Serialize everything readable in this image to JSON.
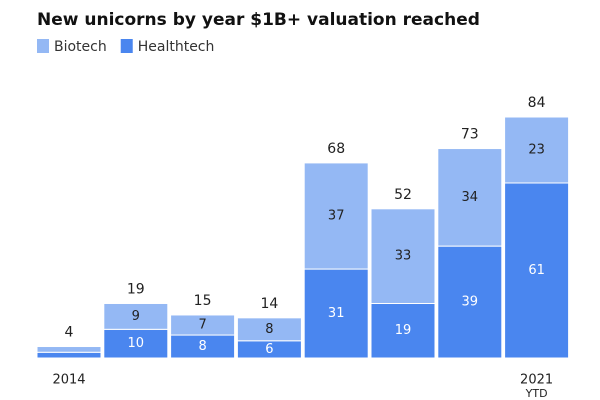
{
  "chart_data": {
    "type": "stacked_bar",
    "title": "New unicorns by year $1B+ valuation reached",
    "categories": [
      "2014",
      null,
      null,
      null,
      null,
      null,
      null,
      "2021"
    ],
    "x_note": "YTD",
    "series": [
      {
        "name": "Healthtech",
        "color": "#4a86ef",
        "values": [
          2,
          10,
          8,
          6,
          31,
          19,
          39,
          61
        ],
        "value_labels": [
          null,
          "10",
          "8",
          "6",
          "31",
          "19",
          "39",
          "61"
        ]
      },
      {
        "name": "Biotech",
        "color": "#94b8f4",
        "values": [
          2,
          9,
          7,
          8,
          37,
          33,
          34,
          23
        ],
        "value_labels": [
          null,
          "9",
          "7",
          "8",
          "37",
          "33",
          "34",
          "23"
        ]
      }
    ],
    "totals": [
      4,
      19,
      15,
      14,
      68,
      52,
      73,
      84
    ],
    "legend_order": [
      1,
      0
    ]
  }
}
